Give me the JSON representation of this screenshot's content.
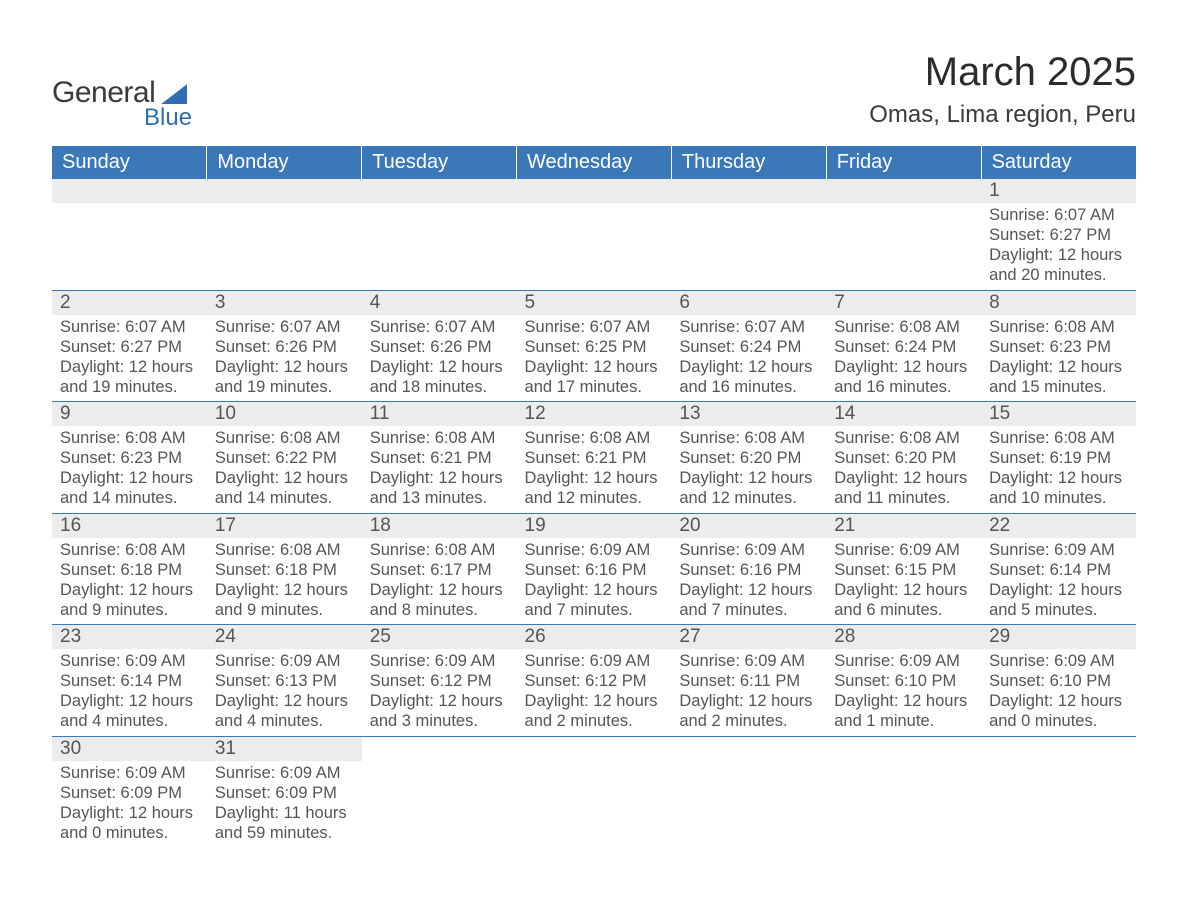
{
  "brand": {
    "line1": "General",
    "line2": "Blue",
    "accent_color": "#2e6eb0"
  },
  "title": "March 2025",
  "location": "Omas, Lima region, Peru",
  "colors": {
    "header_bg": "#3a78b8",
    "header_text": "#ffffff",
    "daynum_bg": "#ececec",
    "text": "#555555",
    "row_border": "#3a78b8"
  },
  "fonts": {
    "title_pt": 40,
    "location_pt": 24,
    "weekday_pt": 20,
    "daynum_pt": 19,
    "body_pt": 16.5
  },
  "weekdays": [
    "Sunday",
    "Monday",
    "Tuesday",
    "Wednesday",
    "Thursday",
    "Friday",
    "Saturday"
  ],
  "layout": {
    "first_weekday_index": 6,
    "rows": 6,
    "cols": 7
  },
  "days": [
    {
      "n": 1,
      "sunrise": "6:07 AM",
      "sunset": "6:27 PM",
      "daylight": "12 hours and 20 minutes."
    },
    {
      "n": 2,
      "sunrise": "6:07 AM",
      "sunset": "6:27 PM",
      "daylight": "12 hours and 19 minutes."
    },
    {
      "n": 3,
      "sunrise": "6:07 AM",
      "sunset": "6:26 PM",
      "daylight": "12 hours and 19 minutes."
    },
    {
      "n": 4,
      "sunrise": "6:07 AM",
      "sunset": "6:26 PM",
      "daylight": "12 hours and 18 minutes."
    },
    {
      "n": 5,
      "sunrise": "6:07 AM",
      "sunset": "6:25 PM",
      "daylight": "12 hours and 17 minutes."
    },
    {
      "n": 6,
      "sunrise": "6:07 AM",
      "sunset": "6:24 PM",
      "daylight": "12 hours and 16 minutes."
    },
    {
      "n": 7,
      "sunrise": "6:08 AM",
      "sunset": "6:24 PM",
      "daylight": "12 hours and 16 minutes."
    },
    {
      "n": 8,
      "sunrise": "6:08 AM",
      "sunset": "6:23 PM",
      "daylight": "12 hours and 15 minutes."
    },
    {
      "n": 9,
      "sunrise": "6:08 AM",
      "sunset": "6:23 PM",
      "daylight": "12 hours and 14 minutes."
    },
    {
      "n": 10,
      "sunrise": "6:08 AM",
      "sunset": "6:22 PM",
      "daylight": "12 hours and 14 minutes."
    },
    {
      "n": 11,
      "sunrise": "6:08 AM",
      "sunset": "6:21 PM",
      "daylight": "12 hours and 13 minutes."
    },
    {
      "n": 12,
      "sunrise": "6:08 AM",
      "sunset": "6:21 PM",
      "daylight": "12 hours and 12 minutes."
    },
    {
      "n": 13,
      "sunrise": "6:08 AM",
      "sunset": "6:20 PM",
      "daylight": "12 hours and 12 minutes."
    },
    {
      "n": 14,
      "sunrise": "6:08 AM",
      "sunset": "6:20 PM",
      "daylight": "12 hours and 11 minutes."
    },
    {
      "n": 15,
      "sunrise": "6:08 AM",
      "sunset": "6:19 PM",
      "daylight": "12 hours and 10 minutes."
    },
    {
      "n": 16,
      "sunrise": "6:08 AM",
      "sunset": "6:18 PM",
      "daylight": "12 hours and 9 minutes."
    },
    {
      "n": 17,
      "sunrise": "6:08 AM",
      "sunset": "6:18 PM",
      "daylight": "12 hours and 9 minutes."
    },
    {
      "n": 18,
      "sunrise": "6:08 AM",
      "sunset": "6:17 PM",
      "daylight": "12 hours and 8 minutes."
    },
    {
      "n": 19,
      "sunrise": "6:09 AM",
      "sunset": "6:16 PM",
      "daylight": "12 hours and 7 minutes."
    },
    {
      "n": 20,
      "sunrise": "6:09 AM",
      "sunset": "6:16 PM",
      "daylight": "12 hours and 7 minutes."
    },
    {
      "n": 21,
      "sunrise": "6:09 AM",
      "sunset": "6:15 PM",
      "daylight": "12 hours and 6 minutes."
    },
    {
      "n": 22,
      "sunrise": "6:09 AM",
      "sunset": "6:14 PM",
      "daylight": "12 hours and 5 minutes."
    },
    {
      "n": 23,
      "sunrise": "6:09 AM",
      "sunset": "6:14 PM",
      "daylight": "12 hours and 4 minutes."
    },
    {
      "n": 24,
      "sunrise": "6:09 AM",
      "sunset": "6:13 PM",
      "daylight": "12 hours and 4 minutes."
    },
    {
      "n": 25,
      "sunrise": "6:09 AM",
      "sunset": "6:12 PM",
      "daylight": "12 hours and 3 minutes."
    },
    {
      "n": 26,
      "sunrise": "6:09 AM",
      "sunset": "6:12 PM",
      "daylight": "12 hours and 2 minutes."
    },
    {
      "n": 27,
      "sunrise": "6:09 AM",
      "sunset": "6:11 PM",
      "daylight": "12 hours and 2 minutes."
    },
    {
      "n": 28,
      "sunrise": "6:09 AM",
      "sunset": "6:10 PM",
      "daylight": "12 hours and 1 minute."
    },
    {
      "n": 29,
      "sunrise": "6:09 AM",
      "sunset": "6:10 PM",
      "daylight": "12 hours and 0 minutes."
    },
    {
      "n": 30,
      "sunrise": "6:09 AM",
      "sunset": "6:09 PM",
      "daylight": "12 hours and 0 minutes."
    },
    {
      "n": 31,
      "sunrise": "6:09 AM",
      "sunset": "6:09 PM",
      "daylight": "11 hours and 59 minutes."
    }
  ],
  "labels": {
    "sunrise": "Sunrise: ",
    "sunset": "Sunset: ",
    "daylight": "Daylight: "
  }
}
